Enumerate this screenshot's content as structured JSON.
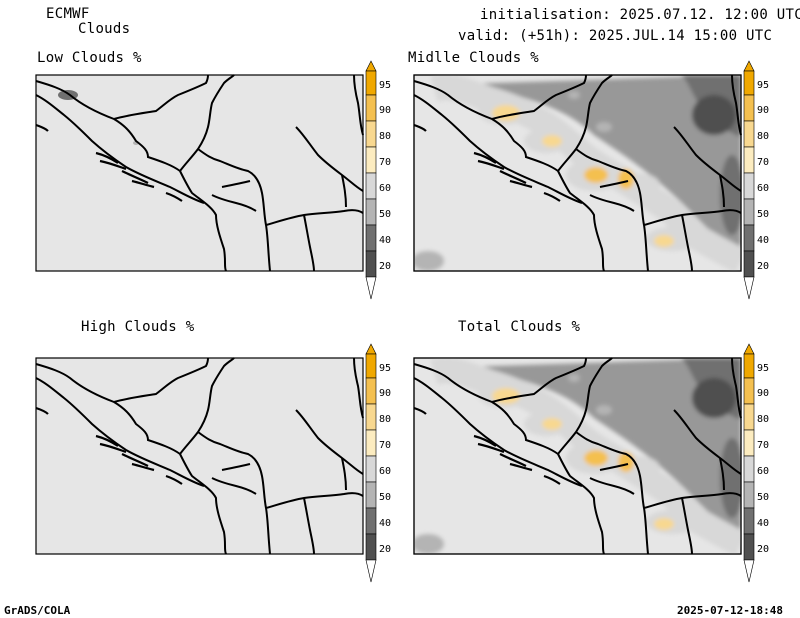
{
  "header": {
    "model": "ECMWF",
    "product": "Clouds",
    "initialisation": "initialisation: 2025.07.12. 12:00 UTC",
    "valid": "valid: (+51h): 2025.JUL.14 15:00 UTC"
  },
  "panels": [
    {
      "key": "low",
      "title": "Low Clouds %"
    },
    {
      "key": "mid",
      "title": "Midlle Clouds %"
    },
    {
      "key": "high",
      "title": "High Clouds %"
    },
    {
      "key": "total",
      "title": "Total Clouds %"
    }
  ],
  "colorbar": {
    "levels": [
      "95",
      "90",
      "80",
      "70",
      "60",
      "50",
      "40",
      "20"
    ],
    "colors": [
      "#f0a800",
      "#f4c050",
      "#f8d890",
      "#fcecc0",
      "#f8f8c8",
      "#d8d8d8",
      "#b4b4b4",
      "#989898",
      "#707070",
      "#505050"
    ],
    "background": "#e6e6e6"
  },
  "footer": {
    "left": "GrADS/COLA",
    "right": "2025-07-12-18:48"
  }
}
